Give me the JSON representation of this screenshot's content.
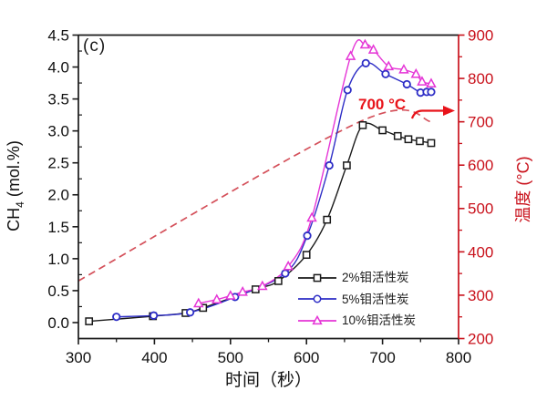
{
  "chart_data": {
    "type": "line",
    "panel": "(c)",
    "xlabel": "时间（秒）",
    "ylabel_left": {
      "prefix": "CH",
      "sub": "4",
      "suffix": " (mol.%)"
    },
    "ylabel_right": "温度 (°C)",
    "x_axis": {
      "min": 300,
      "max": 800,
      "major_ticks": [
        300,
        400,
        500,
        600,
        700,
        800
      ],
      "minor_ticks": [
        350,
        450,
        550,
        650,
        750
      ]
    },
    "y_left_axis": {
      "min": -0.25,
      "max": 4.5,
      "major_ticks": [
        0.0,
        0.5,
        1.0,
        1.5,
        2.0,
        2.5,
        3.0,
        3.5,
        4.0,
        4.5
      ],
      "minor_step": 0.25,
      "color": "#1a1a1a"
    },
    "y_right_axis": {
      "min": 200,
      "max": 900,
      "major_ticks": [
        200,
        300,
        400,
        500,
        600,
        700,
        800,
        900
      ],
      "minor_step": 50,
      "color": "#c9121c"
    },
    "grid": false,
    "legend": {
      "position": "inside-bottom-right"
    },
    "series": [
      {
        "name": "2%钼活性炭",
        "color": "#1a1a1a",
        "marker": "square",
        "axis": "left",
        "points": [
          [
            314,
            0.02
          ],
          [
            398,
            0.1
          ],
          [
            441,
            0.15
          ],
          [
            464,
            0.23
          ],
          [
            533,
            0.52
          ],
          [
            563,
            0.65
          ],
          [
            600,
            1.06
          ],
          [
            627,
            1.61
          ],
          [
            653,
            2.46
          ],
          [
            674,
            3.09
          ],
          [
            700,
            3.01
          ],
          [
            720,
            2.92
          ],
          [
            734,
            2.87
          ],
          [
            749,
            2.84
          ],
          [
            764,
            2.81
          ]
        ]
      },
      {
        "name": "5%钼活性炭",
        "color": "#2d2dc6",
        "marker": "circle",
        "axis": "left",
        "points": [
          [
            350,
            0.09
          ],
          [
            399,
            0.11
          ],
          [
            447,
            0.16
          ],
          [
            506,
            0.4
          ],
          [
            572,
            0.77
          ],
          [
            601,
            1.36
          ],
          [
            630,
            2.46
          ],
          [
            654,
            3.64
          ],
          [
            678,
            4.06
          ],
          [
            704,
            3.89
          ],
          [
            732,
            3.73
          ],
          [
            750,
            3.6
          ],
          [
            758,
            3.61
          ],
          [
            764,
            3.61
          ]
        ]
      },
      {
        "name": "10%钼活性炭",
        "color": "#e535d6",
        "marker": "triangle-up",
        "axis": "left",
        "points": [
          [
            458,
            0.3
          ],
          [
            482,
            0.36
          ],
          [
            500,
            0.42
          ],
          [
            516,
            0.48
          ],
          [
            542,
            0.57
          ],
          [
            576,
            0.88
          ],
          [
            607,
            1.64
          ],
          [
            658,
            4.17
          ],
          [
            677,
            4.35
          ],
          [
            688,
            4.27
          ],
          [
            708,
            4.01
          ],
          [
            728,
            3.96
          ],
          [
            744,
            3.89
          ],
          [
            752,
            3.77
          ],
          [
            764,
            3.74
          ]
        ]
      }
    ],
    "temperature_series": {
      "name": "温度",
      "color": "#d4505a",
      "style": "dashed",
      "axis": "right",
      "points": [
        [
          300,
          333
        ],
        [
          670,
          700
        ],
        [
          765,
          700
        ]
      ]
    },
    "annotations": {
      "panel_label": "(c)",
      "temp_label": "700 °C",
      "temp_label_color": "#e8131a",
      "temp_arrow": "right"
    }
  }
}
